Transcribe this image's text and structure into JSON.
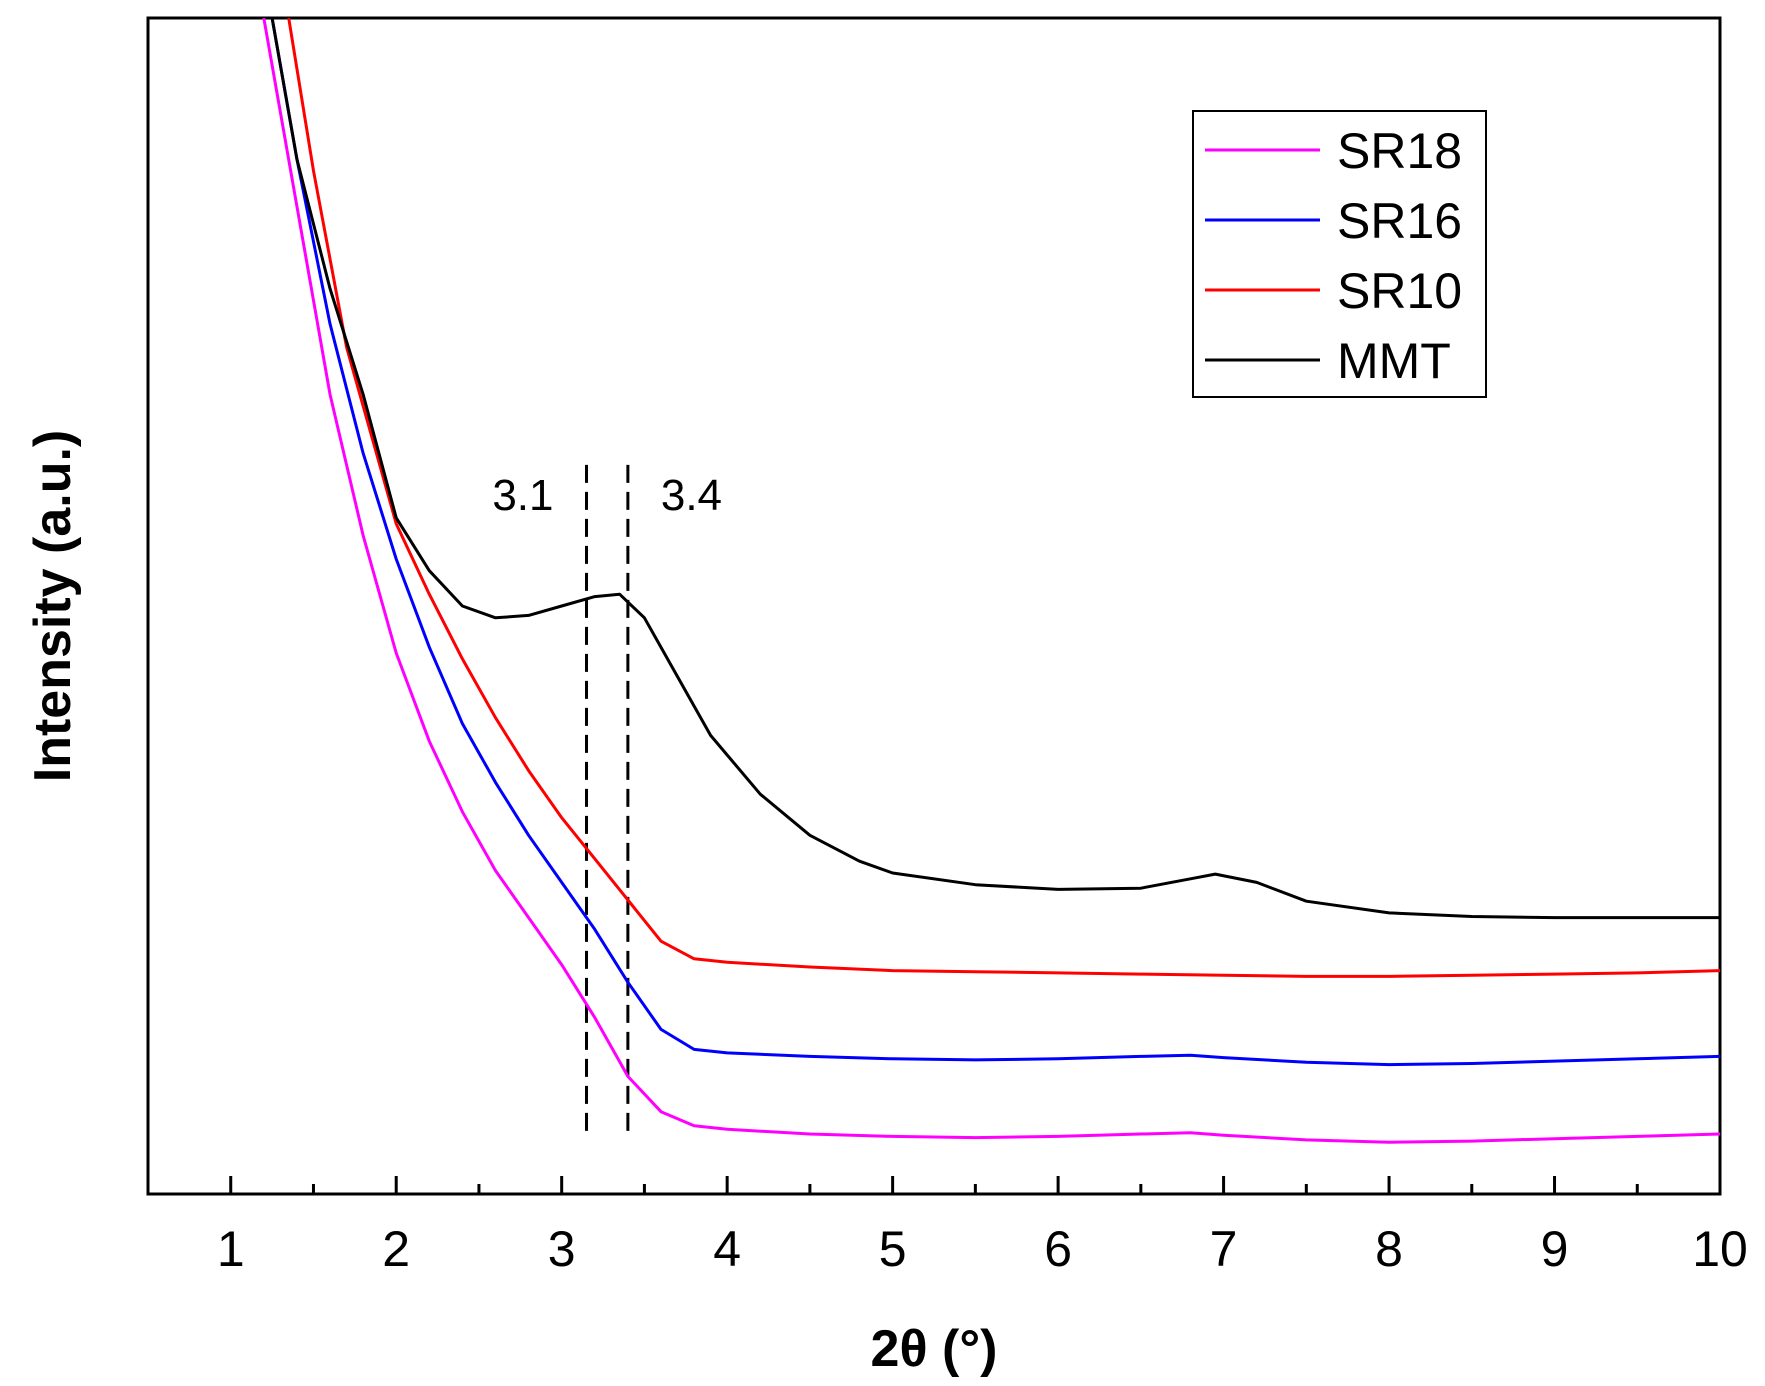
{
  "chart_data": {
    "type": "line",
    "title": "",
    "xlabel": "2θ (°)",
    "ylabel": "Intensity (a.u.)",
    "xlim": [
      0.5,
      10
    ],
    "ylim": [
      0,
      100
    ],
    "x_ticks": [
      "1",
      "2",
      "3",
      "4",
      "5",
      "6",
      "7",
      "8",
      "9",
      "10"
    ],
    "legend_position": "top-right",
    "series": [
      {
        "name": "SR18",
        "color": "#ff00ff",
        "x": [
          1.2,
          1.4,
          1.6,
          1.8,
          2.0,
          2.2,
          2.4,
          2.6,
          2.8,
          3.0,
          3.2,
          3.4,
          3.6,
          3.8,
          4.0,
          4.5,
          5.0,
          5.5,
          6.0,
          6.5,
          6.8,
          7.0,
          7.5,
          8.0,
          8.5,
          9.0,
          9.5,
          10.0
        ],
        "y": [
          100,
          84,
          68,
          56,
          46,
          38.5,
          32.5,
          27.5,
          23.5,
          19.5,
          15,
          10,
          7,
          5.8,
          5.5,
          5.1,
          4.9,
          4.8,
          4.9,
          5.1,
          5.2,
          5.0,
          4.6,
          4.4,
          4.5,
          4.7,
          4.9,
          5.1
        ]
      },
      {
        "name": "SR16",
        "color": "#0000ff",
        "x": [
          1.25,
          1.4,
          1.6,
          1.8,
          2.0,
          2.2,
          2.4,
          2.6,
          2.8,
          3.0,
          3.2,
          3.4,
          3.6,
          3.8,
          4.0,
          4.5,
          5.0,
          5.5,
          6.0,
          6.5,
          6.8,
          7.0,
          7.5,
          8.0,
          8.5,
          9.0,
          9.5,
          10.0
        ],
        "y": [
          100,
          88,
          74,
          63,
          54,
          46.5,
          40,
          35,
          30.5,
          26.5,
          22.5,
          18,
          14,
          12.3,
          12.0,
          11.7,
          11.5,
          11.4,
          11.5,
          11.7,
          11.8,
          11.6,
          11.2,
          11.0,
          11.1,
          11.3,
          11.5,
          11.7
        ]
      },
      {
        "name": "SR10",
        "color": "#ff0000",
        "x": [
          1.35,
          1.5,
          1.7,
          1.9,
          2.0,
          2.2,
          2.4,
          2.6,
          2.8,
          3.0,
          3.2,
          3.4,
          3.6,
          3.8,
          4.0,
          4.5,
          5.0,
          5.5,
          6.0,
          6.5,
          7.0,
          7.5,
          8.0,
          8.5,
          9.0,
          9.5,
          10.0
        ],
        "y": [
          100,
          87,
          72,
          62,
          57,
          51,
          45.5,
          40.5,
          36,
          32,
          28.5,
          25,
          21.5,
          20,
          19.7,
          19.3,
          19.0,
          18.9,
          18.8,
          18.7,
          18.6,
          18.5,
          18.5,
          18.6,
          18.7,
          18.8,
          19.0
        ]
      },
      {
        "name": "MMT",
        "color": "#000000",
        "x": [
          1.25,
          1.4,
          1.6,
          1.8,
          2.0,
          2.2,
          2.4,
          2.6,
          2.8,
          3.0,
          3.2,
          3.35,
          3.5,
          3.7,
          3.9,
          4.2,
          4.5,
          4.8,
          5.0,
          5.5,
          6.0,
          6.5,
          6.8,
          6.95,
          7.2,
          7.5,
          8.0,
          8.5,
          9.0,
          9.5,
          10.0
        ],
        "y": [
          100,
          88,
          77,
          68,
          57.5,
          53,
          50,
          49,
          49.2,
          50,
          50.8,
          51,
          49,
          44,
          39,
          34,
          30.5,
          28.3,
          27.3,
          26.3,
          25.9,
          26.0,
          26.8,
          27.2,
          26.5,
          24.9,
          23.9,
          23.6,
          23.5,
          23.5,
          23.5
        ]
      }
    ],
    "reference_lines": [
      {
        "x": 3.15,
        "label": "3.1",
        "style": "dashed"
      },
      {
        "x": 3.4,
        "label": "3.4",
        "style": "dashed"
      }
    ]
  }
}
